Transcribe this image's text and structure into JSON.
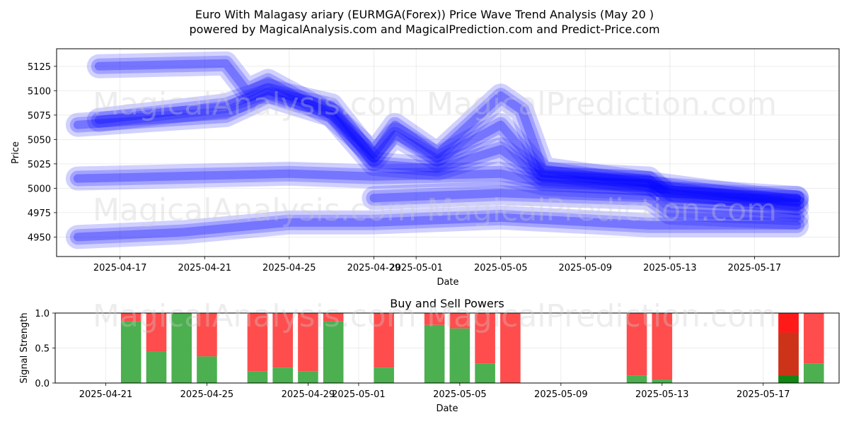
{
  "title_line1": "Euro With Malagasy ariary (EURMGA(Forex)) Price Wave Trend Analysis (May 20 )",
  "title_line2": "powered by MagicalAnalysis.com and MagicalPrediction.com and Predict-Price.com",
  "watermarks": [
    "MagicalAnalysis.com",
    "MagicalPrediction.com"
  ],
  "colors": {
    "wave": "#0000ff",
    "buy": "#4caf50",
    "sell": "#ff4d4d",
    "sell_strong": "#ff1a1a",
    "buy_strong": "#128512",
    "mixed": "#cc3319"
  },
  "chart_data": [
    {
      "type": "area",
      "title": "",
      "xlabel": "Date",
      "ylabel": "Price",
      "xlim": [
        "2025-04-14",
        "2025-05-21"
      ],
      "ylim": [
        4930,
        5143
      ],
      "x_ticks": [
        "2025-04-17",
        "2025-04-21",
        "2025-04-25",
        "2025-04-29",
        "2025-05-01",
        "2025-05-05",
        "2025-05-09",
        "2025-05-13",
        "2025-05-17"
      ],
      "y_ticks": [
        4950,
        4975,
        5000,
        5025,
        5050,
        5075,
        5100,
        5125
      ],
      "grid": true,
      "series": [
        {
          "x": [
            "2025-04-16",
            "2025-04-22",
            "2025-04-23",
            "2025-04-24",
            "2025-04-27",
            "2025-04-29",
            "2025-04-30",
            "2025-05-02",
            "2025-05-05",
            "2025-05-06",
            "2025-05-07",
            "2025-05-12",
            "2025-05-13",
            "2025-05-17",
            "2025-05-19"
          ],
          "values": [
            5125,
            5128,
            5100,
            5110,
            5075,
            5035,
            5065,
            5035,
            5095,
            5080,
            5020,
            5005,
            4995,
            4990,
            4990
          ]
        },
        {
          "x": [
            "2025-04-16",
            "2025-04-22",
            "2025-04-24",
            "2025-04-27",
            "2025-04-29",
            "2025-04-30",
            "2025-05-02",
            "2025-05-05",
            "2025-05-07",
            "2025-05-12",
            "2025-05-13",
            "2025-05-17",
            "2025-05-19"
          ],
          "values": [
            5070,
            5085,
            5100,
            5085,
            5030,
            5055,
            5030,
            5065,
            5015,
            5010,
            4990,
            4985,
            4980
          ]
        },
        {
          "x": [
            "2025-04-15",
            "2025-04-22",
            "2025-04-24",
            "2025-04-27",
            "2025-04-29",
            "2025-05-02",
            "2025-05-05",
            "2025-05-07",
            "2025-05-12",
            "2025-05-19"
          ],
          "values": [
            5065,
            5075,
            5095,
            5075,
            5025,
            5020,
            5040,
            5010,
            5005,
            4985
          ]
        },
        {
          "x": [
            "2025-04-15",
            "2025-04-25",
            "2025-04-29",
            "2025-05-05",
            "2025-05-07",
            "2025-05-12",
            "2025-05-19"
          ],
          "values": [
            5010,
            5015,
            5012,
            5015,
            5005,
            5000,
            4990
          ]
        },
        {
          "x": [
            "2025-04-15",
            "2025-04-20",
            "2025-04-25",
            "2025-04-29",
            "2025-05-05",
            "2025-05-12",
            "2025-05-19"
          ],
          "values": [
            4950,
            4955,
            4965,
            4965,
            4970,
            4962,
            4962
          ]
        },
        {
          "x": [
            "2025-04-29",
            "2025-05-05",
            "2025-05-12",
            "2025-05-13",
            "2025-05-19"
          ],
          "values": [
            4990,
            4995,
            4990,
            4975,
            4970
          ]
        }
      ]
    },
    {
      "type": "bar",
      "title": "Buy and Sell Powers",
      "xlabel": "Date",
      "ylabel": "Signal Strength",
      "xlim": [
        "2025-04-19",
        "2025-05-20"
      ],
      "ylim": [
        0,
        1.0
      ],
      "x_ticks": [
        "2025-04-21",
        "2025-04-25",
        "2025-04-29",
        "2025-05-01",
        "2025-05-05",
        "2025-05-09",
        "2025-05-13",
        "2025-05-17"
      ],
      "y_ticks": [
        "0.0",
        "0.5",
        "1.0"
      ],
      "grid": true,
      "bars": [
        {
          "date": "2025-04-22",
          "buy": 0.88
        },
        {
          "date": "2025-04-23",
          "buy": 0.45
        },
        {
          "date": "2025-04-24",
          "buy": 1.0
        },
        {
          "date": "2025-04-25",
          "buy": 0.38
        },
        {
          "date": "2025-04-27",
          "buy": 0.17
        },
        {
          "date": "2025-04-28",
          "buy": 0.22
        },
        {
          "date": "2025-04-29",
          "buy": 0.17
        },
        {
          "date": "2025-04-30",
          "buy": 0.88
        },
        {
          "date": "2025-05-02",
          "buy": 0.22
        },
        {
          "date": "2025-05-04",
          "buy": 0.83
        },
        {
          "date": "2025-05-05",
          "buy": 0.78
        },
        {
          "date": "2025-05-06",
          "buy": 0.28
        },
        {
          "date": "2025-05-07",
          "buy": 0.0
        },
        {
          "date": "2025-05-12",
          "buy": 0.11
        },
        {
          "date": "2025-05-13",
          "buy": 0.05
        },
        {
          "date": "2025-05-18",
          "buy": 0.11,
          "mixed": 0.6
        },
        {
          "date": "2025-05-19",
          "buy": 0.28
        }
      ]
    }
  ]
}
